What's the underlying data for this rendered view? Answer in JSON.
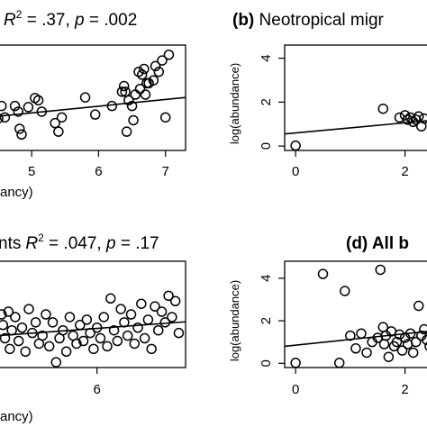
{
  "chart_data": [
    {
      "type": "scatter",
      "title": "",
      "stats": {
        "r2_label": "R",
        "r2_exp": "2",
        "r2_rest": " = .37, ",
        "p_label": "p",
        "p_rest": " = .002"
      },
      "xlabel_partial": "ancy)",
      "ylabel": "",
      "xticks": [
        5,
        6,
        7
      ],
      "yticks": [],
      "xlim": [
        4.5,
        7.3
      ],
      "ylim": [
        0.1,
        1.95
      ],
      "fit": {
        "x": [
          4.5,
          7.3
        ],
        "y": [
          0.7,
          1.03
        ]
      },
      "points": [
        [
          4.5,
          0.66
        ],
        [
          4.55,
          0.88
        ],
        [
          4.6,
          0.68
        ],
        [
          4.75,
          0.88
        ],
        [
          4.8,
          0.78
        ],
        [
          4.82,
          0.48
        ],
        [
          4.85,
          0.38
        ],
        [
          4.95,
          0.86
        ],
        [
          5.05,
          1.02
        ],
        [
          5.1,
          0.98
        ],
        [
          5.15,
          0.78
        ],
        [
          5.4,
          0.43
        ],
        [
          5.35,
          0.58
        ],
        [
          5.45,
          0.68
        ],
        [
          5.8,
          1.03
        ],
        [
          5.95,
          0.73
        ],
        [
          6.2,
          0.88
        ],
        [
          6.35,
          1.13
        ],
        [
          6.38,
          1.23
        ],
        [
          6.4,
          1.13
        ],
        [
          6.42,
          0.43
        ],
        [
          6.45,
          0.98
        ],
        [
          6.5,
          0.88
        ],
        [
          6.52,
          0.63
        ],
        [
          6.55,
          1.08
        ],
        [
          6.6,
          1.48
        ],
        [
          6.62,
          1.18
        ],
        [
          6.65,
          1.43
        ],
        [
          6.68,
          1.53
        ],
        [
          6.7,
          1.08
        ],
        [
          6.72,
          1.28
        ],
        [
          6.75,
          1.28
        ],
        [
          6.82,
          1.33
        ],
        [
          6.85,
          1.58
        ],
        [
          6.9,
          1.48
        ],
        [
          6.95,
          1.68
        ],
        [
          7.0,
          0.68
        ],
        [
          7.05,
          1.78
        ]
      ]
    },
    {
      "type": "scatter",
      "title": "(b) Neotropical migr",
      "title_bold": "(b)",
      "title_rest": " Neotropical migr",
      "xlabel": "",
      "ylabel": "log(abundance)",
      "xticks": [
        0,
        2
      ],
      "yticks": [
        0,
        2,
        4
      ],
      "xlim": [
        -0.2,
        2.6
      ],
      "ylim": [
        -0.2,
        4.6
      ],
      "fit": {
        "x": [
          -0.2,
          2.6
        ],
        "y": [
          0.55,
          1.2
        ]
      },
      "points": [
        [
          0.0,
          0.02
        ],
        [
          1.6,
          1.7
        ],
        [
          1.9,
          1.3
        ],
        [
          2.0,
          1.4
        ],
        [
          2.05,
          1.2
        ],
        [
          2.1,
          1.3
        ],
        [
          2.15,
          1.1
        ],
        [
          2.2,
          1.2
        ],
        [
          2.25,
          1.35
        ],
        [
          2.3,
          0.9
        ],
        [
          2.35,
          1.25
        ]
      ]
    },
    {
      "type": "scatter",
      "title": "nts",
      "stats": {
        "r2_label": "R",
        "r2_exp": "2",
        "r2_rest": " = .047, ",
        "p_label": "p",
        "p_rest": " = .17"
      },
      "xlabel_partial": "ancy)",
      "ylabel": "",
      "xticks": [
        6
      ],
      "yticks": [],
      "xlim": [
        4.55,
        7.3
      ],
      "ylim": [
        0.0,
        2.0
      ],
      "fit": {
        "x": [
          4.55,
          7.3
        ],
        "y": [
          0.6,
          0.86
        ]
      },
      "points": [
        [
          4.6,
          1.0
        ],
        [
          4.62,
          0.8
        ],
        [
          4.65,
          0.55
        ],
        [
          4.7,
          1.05
        ],
        [
          4.72,
          0.35
        ],
        [
          4.75,
          0.7
        ],
        [
          4.8,
          0.95
        ],
        [
          4.85,
          0.5
        ],
        [
          4.9,
          0.75
        ],
        [
          4.95,
          0.3
        ],
        [
          5.0,
          1.1
        ],
        [
          5.05,
          0.65
        ],
        [
          5.1,
          0.85
        ],
        [
          5.15,
          0.45
        ],
        [
          5.2,
          0.6
        ],
        [
          5.25,
          1.0
        ],
        [
          5.3,
          0.4
        ],
        [
          5.35,
          0.85
        ],
        [
          5.4,
          0.1
        ],
        [
          5.45,
          0.55
        ],
        [
          5.5,
          0.7
        ],
        [
          5.55,
          0.3
        ],
        [
          5.6,
          0.95
        ],
        [
          5.65,
          0.6
        ],
        [
          5.7,
          0.45
        ],
        [
          5.75,
          0.8
        ],
        [
          5.8,
          0.5
        ],
        [
          5.85,
          0.9
        ],
        [
          5.9,
          0.65
        ],
        [
          5.95,
          0.35
        ],
        [
          6.0,
          0.75
        ],
        [
          6.05,
          0.55
        ],
        [
          6.1,
          0.95
        ],
        [
          6.15,
          0.4
        ],
        [
          6.2,
          1.3
        ],
        [
          6.25,
          0.7
        ],
        [
          6.3,
          0.5
        ],
        [
          6.35,
          1.1
        ],
        [
          6.4,
          0.85
        ],
        [
          6.45,
          0.6
        ],
        [
          6.5,
          1.0
        ],
        [
          6.55,
          0.45
        ],
        [
          6.6,
          0.75
        ],
        [
          6.65,
          1.2
        ],
        [
          6.7,
          0.55
        ],
        [
          6.75,
          0.9
        ],
        [
          6.8,
          0.35
        ],
        [
          6.85,
          1.15
        ],
        [
          6.9,
          0.7
        ],
        [
          6.95,
          1.05
        ],
        [
          7.0,
          0.85
        ],
        [
          7.05,
          1.35
        ],
        [
          7.1,
          0.95
        ],
        [
          7.15,
          1.25
        ],
        [
          7.2,
          0.65
        ]
      ]
    },
    {
      "type": "scatter",
      "title": "(d) All b",
      "title_bold": "(d) All b",
      "xlabel": "",
      "ylabel": "log(abundance)",
      "xticks": [
        0,
        2
      ],
      "yticks": [
        0,
        2,
        4
      ],
      "xlim": [
        -0.2,
        2.6
      ],
      "ylim": [
        -0.2,
        4.8
      ],
      "fit": {
        "x": [
          -0.2,
          2.6
        ],
        "y": [
          0.8,
          1.55
        ]
      },
      "points": [
        [
          0.0,
          0.02
        ],
        [
          0.5,
          4.2
        ],
        [
          0.8,
          0.02
        ],
        [
          0.9,
          3.4
        ],
        [
          1.0,
          1.3
        ],
        [
          1.1,
          0.7
        ],
        [
          1.2,
          1.4
        ],
        [
          1.3,
          0.5
        ],
        [
          1.4,
          1.0
        ],
        [
          1.5,
          1.2
        ],
        [
          1.55,
          4.4
        ],
        [
          1.6,
          1.7
        ],
        [
          1.62,
          0.9
        ],
        [
          1.65,
          1.3
        ],
        [
          1.7,
          0.3
        ],
        [
          1.75,
          1.5
        ],
        [
          1.8,
          0.8
        ],
        [
          1.85,
          1.0
        ],
        [
          1.9,
          1.35
        ],
        [
          1.95,
          0.6
        ],
        [
          2.0,
          1.2
        ],
        [
          2.05,
          0.9
        ],
        [
          2.1,
          1.4
        ],
        [
          2.15,
          0.5
        ],
        [
          2.2,
          1.0
        ],
        [
          2.25,
          2.7
        ],
        [
          2.3,
          1.3
        ],
        [
          2.35,
          1.6
        ],
        [
          2.4,
          1.1
        ],
        [
          2.45,
          0.8
        ],
        [
          2.5,
          1.5
        ]
      ]
    }
  ]
}
